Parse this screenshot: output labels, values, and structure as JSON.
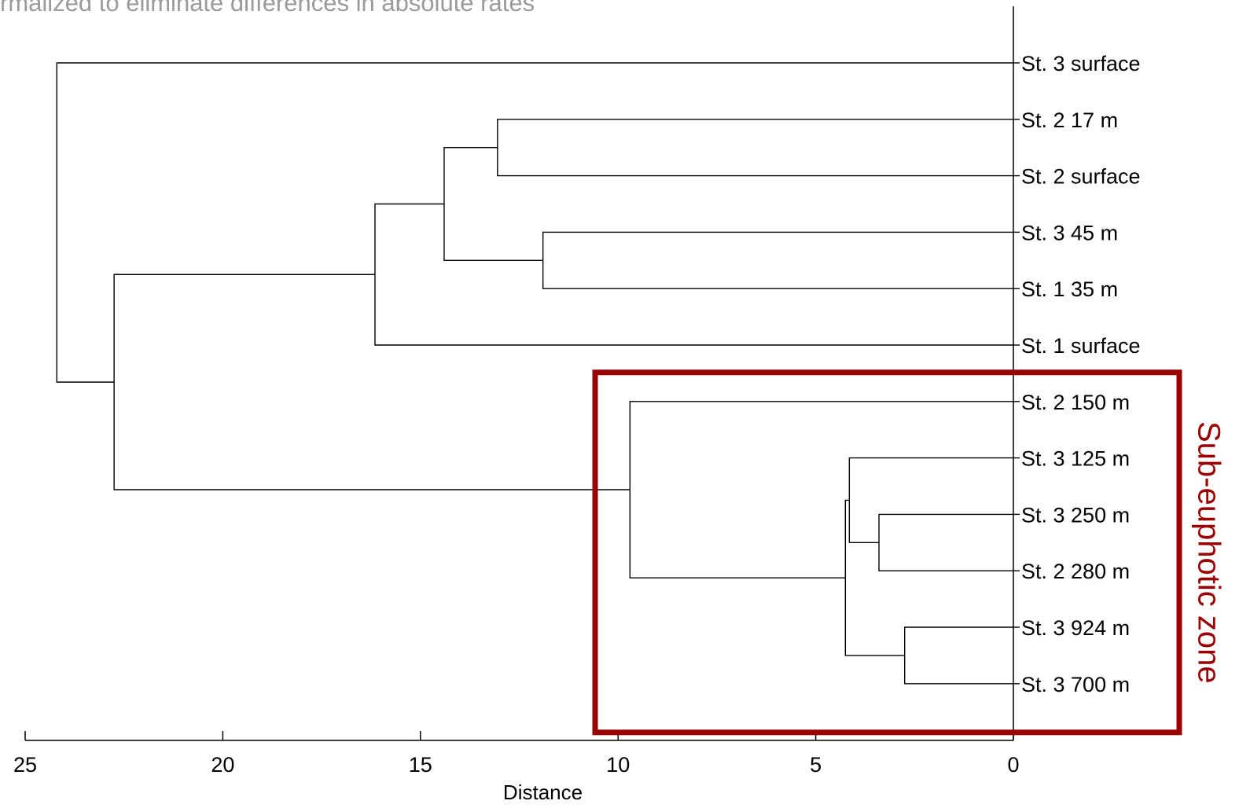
{
  "chart_data": {
    "type": "dendrogram",
    "subtitle_fragment": "rmalized to eliminate differences in absolute rates",
    "xlabel": "Distance",
    "xlim": [
      25,
      0
    ],
    "xticks": [
      25,
      20,
      15,
      10,
      5,
      0
    ],
    "leaves": [
      "St. 3 surface",
      "St. 2 17 m",
      "St. 2 surface",
      "St. 3 45 m",
      "St. 1 35 m",
      "St. 1 surface",
      "St. 2 150 m",
      "St. 3 125 m",
      "St. 3 250 m",
      "St. 2 280 m",
      "St. 3 924 m",
      "St. 3 700 m"
    ],
    "merges": [
      {
        "id": "m1",
        "left": "leaf:10",
        "right": "leaf:11",
        "distance": 2.75
      },
      {
        "id": "m2",
        "left": "leaf:8",
        "right": "leaf:9",
        "distance": 3.4
      },
      {
        "id": "m3",
        "left": "leaf:7",
        "right": "m2",
        "distance": 4.15
      },
      {
        "id": "m4",
        "left": "m3",
        "right": "m1",
        "distance": 4.25
      },
      {
        "id": "m5",
        "left": "leaf:6",
        "right": "m4",
        "distance": 9.7
      },
      {
        "id": "m6",
        "left": "leaf:3",
        "right": "leaf:4",
        "distance": 11.9
      },
      {
        "id": "m7",
        "left": "leaf:1",
        "right": "leaf:2",
        "distance": 13.05
      },
      {
        "id": "m8",
        "left": "m7",
        "right": "m6",
        "distance": 14.4
      },
      {
        "id": "m9",
        "left": "m8",
        "right": "leaf:5",
        "distance": 16.15
      },
      {
        "id": "m10",
        "left": "m9",
        "right": "m5",
        "distance": 22.75
      },
      {
        "id": "m11",
        "left": "leaf:0",
        "right": "m10",
        "distance": 24.2
      }
    ],
    "highlight": {
      "label": "Sub-euphotic zone",
      "color": "#990000",
      "leaves": [
        6,
        7,
        8,
        9,
        10,
        11
      ]
    }
  }
}
